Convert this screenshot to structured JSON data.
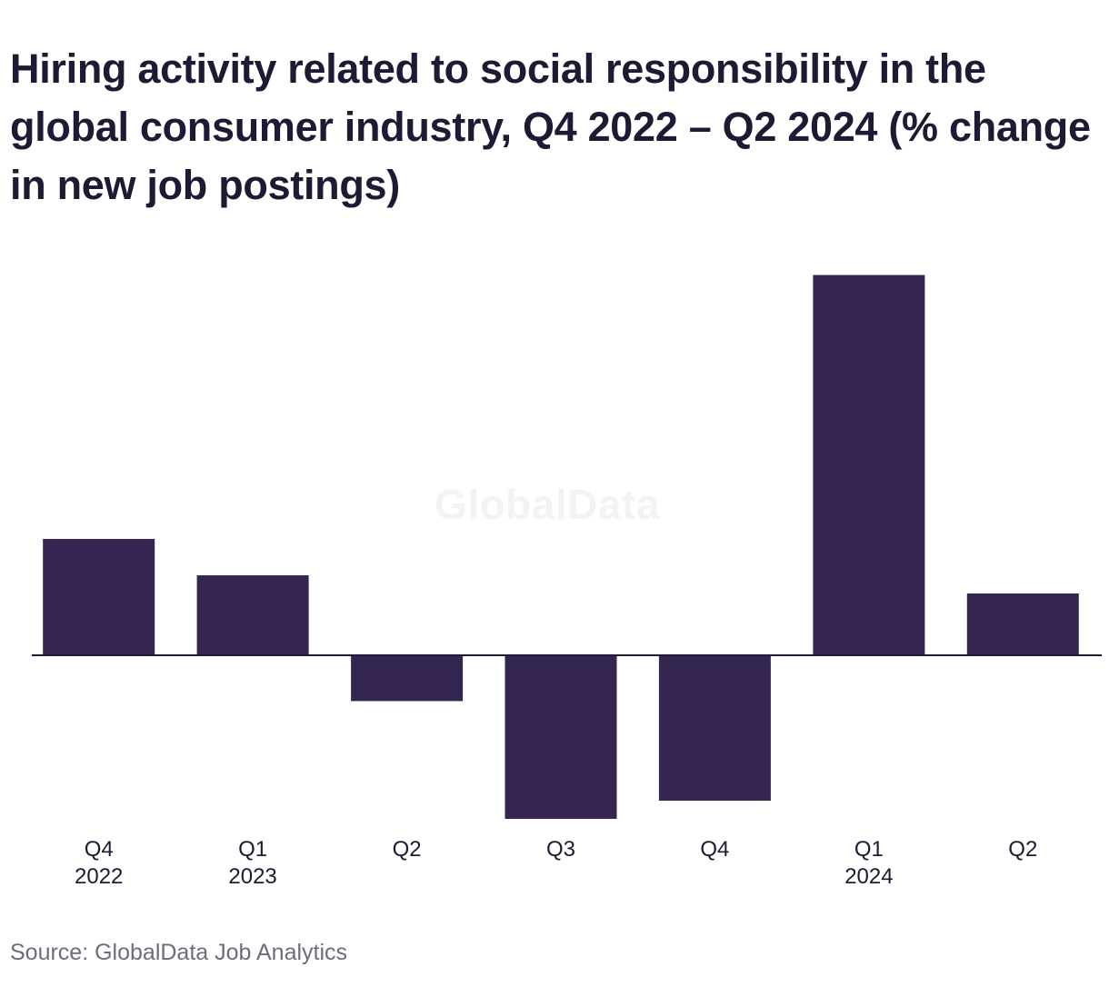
{
  "header": {
    "title": "Hiring activity related to social responsibility in the global consumer industry, Q4 2022 – Q2 2024 (% change in new job postings)"
  },
  "watermark": {
    "text": "GlobalData"
  },
  "footer": {
    "source": "Source: GlobalData Job Analytics"
  },
  "colors": {
    "bar": "#352551",
    "axis": "#1d1a33",
    "text": "#1d1a33"
  },
  "chart_data": {
    "type": "bar",
    "title": "Hiring activity related to social responsibility in the global consumer industry, Q4 2022 – Q2 2024 (% change in new job postings)",
    "xlabel": "",
    "ylabel": "",
    "grid": false,
    "categories": [
      [
        "Q4",
        "2022"
      ],
      [
        "Q1",
        "2023"
      ],
      [
        "Q2"
      ],
      [
        "Q3"
      ],
      [
        "Q4"
      ],
      [
        "Q1",
        "2024"
      ],
      [
        "Q2"
      ]
    ],
    "values": [
      16,
      11,
      -6.3,
      -22.5,
      -20,
      52.3,
      8.5
    ],
    "ylim": [
      -22.5,
      52.3
    ]
  }
}
